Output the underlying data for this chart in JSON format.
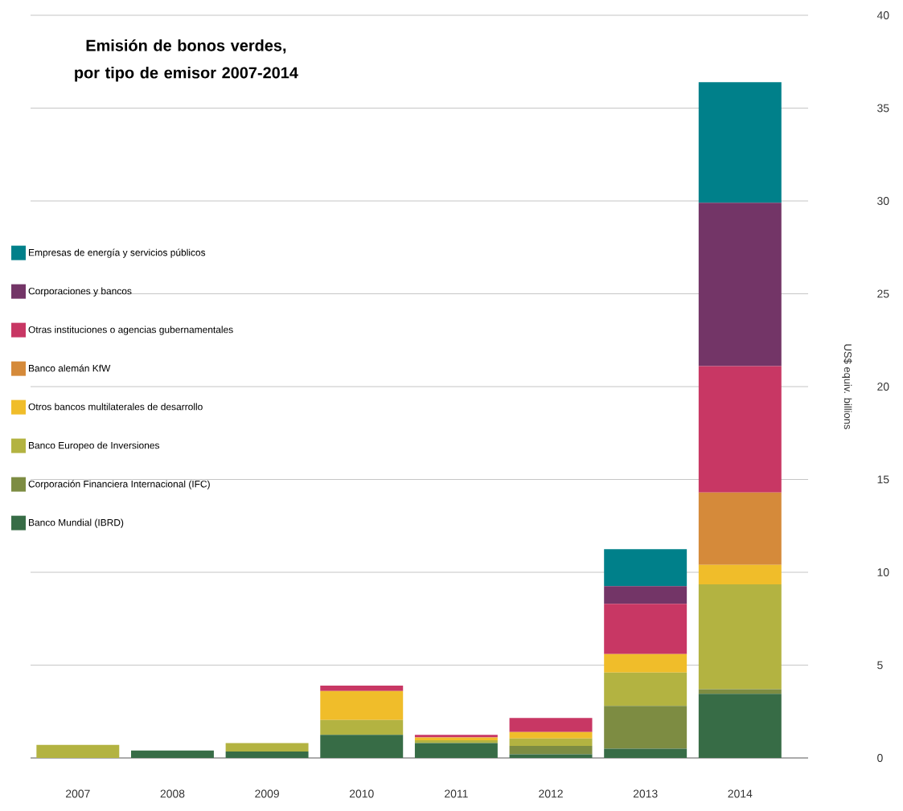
{
  "chart_data": {
    "type": "bar",
    "stacked": true,
    "title": "Emisión de bonos verdes, por tipo de emisor 2007-2014",
    "ylabel": "US$ equiv. billions",
    "categories": [
      "2007",
      "2008",
      "2009",
      "2010",
      "2011",
      "2012",
      "2013",
      "2014"
    ],
    "series": [
      {
        "name": "Banco Mundial (IBRD)",
        "color": "#376c46",
        "values": [
          0,
          0.4,
          0.35,
          1.25,
          0.8,
          0.2,
          0.5,
          3.45
        ]
      },
      {
        "name": "Corporación Financiera Internacional (IFC)",
        "color": "#7d8c42",
        "values": [
          0,
          0,
          0,
          0,
          0,
          0.45,
          2.3,
          0.25
        ]
      },
      {
        "name": "Banco Europeo de Inversiones",
        "color": "#b3b341",
        "values": [
          0.7,
          0,
          0.45,
          0.8,
          0.15,
          0.4,
          1.8,
          5.65
        ]
      },
      {
        "name": "Otros bancos multilaterales de desarrollo",
        "color": "#f0bd2a",
        "values": [
          0,
          0,
          0,
          1.55,
          0.15,
          0.35,
          1.0,
          1.05
        ]
      },
      {
        "name": "Banco alemán KfW",
        "color": "#d58a3a",
        "values": [
          0,
          0,
          0,
          0,
          0,
          0,
          0,
          3.9
        ]
      },
      {
        "name": "Otras instituciones o agencias gubernamentales",
        "color": "#c83764",
        "values": [
          0,
          0,
          0,
          0.3,
          0.15,
          0.75,
          2.7,
          6.8
        ]
      },
      {
        "name": "Corporaciones y bancos",
        "color": "#733567",
        "values": [
          0,
          0,
          0,
          0,
          0,
          0,
          0.95,
          8.8
        ]
      },
      {
        "name": "Empresas de energía y servicios públicos",
        "color": "#00808a",
        "values": [
          0,
          0,
          0,
          0,
          0,
          0,
          2.0,
          6.5
        ]
      }
    ],
    "ylim": [
      0,
      40
    ],
    "yticks": [
      0,
      5,
      10,
      15,
      20,
      25,
      30,
      35,
      40
    ],
    "grid": "y",
    "legend": "left"
  }
}
